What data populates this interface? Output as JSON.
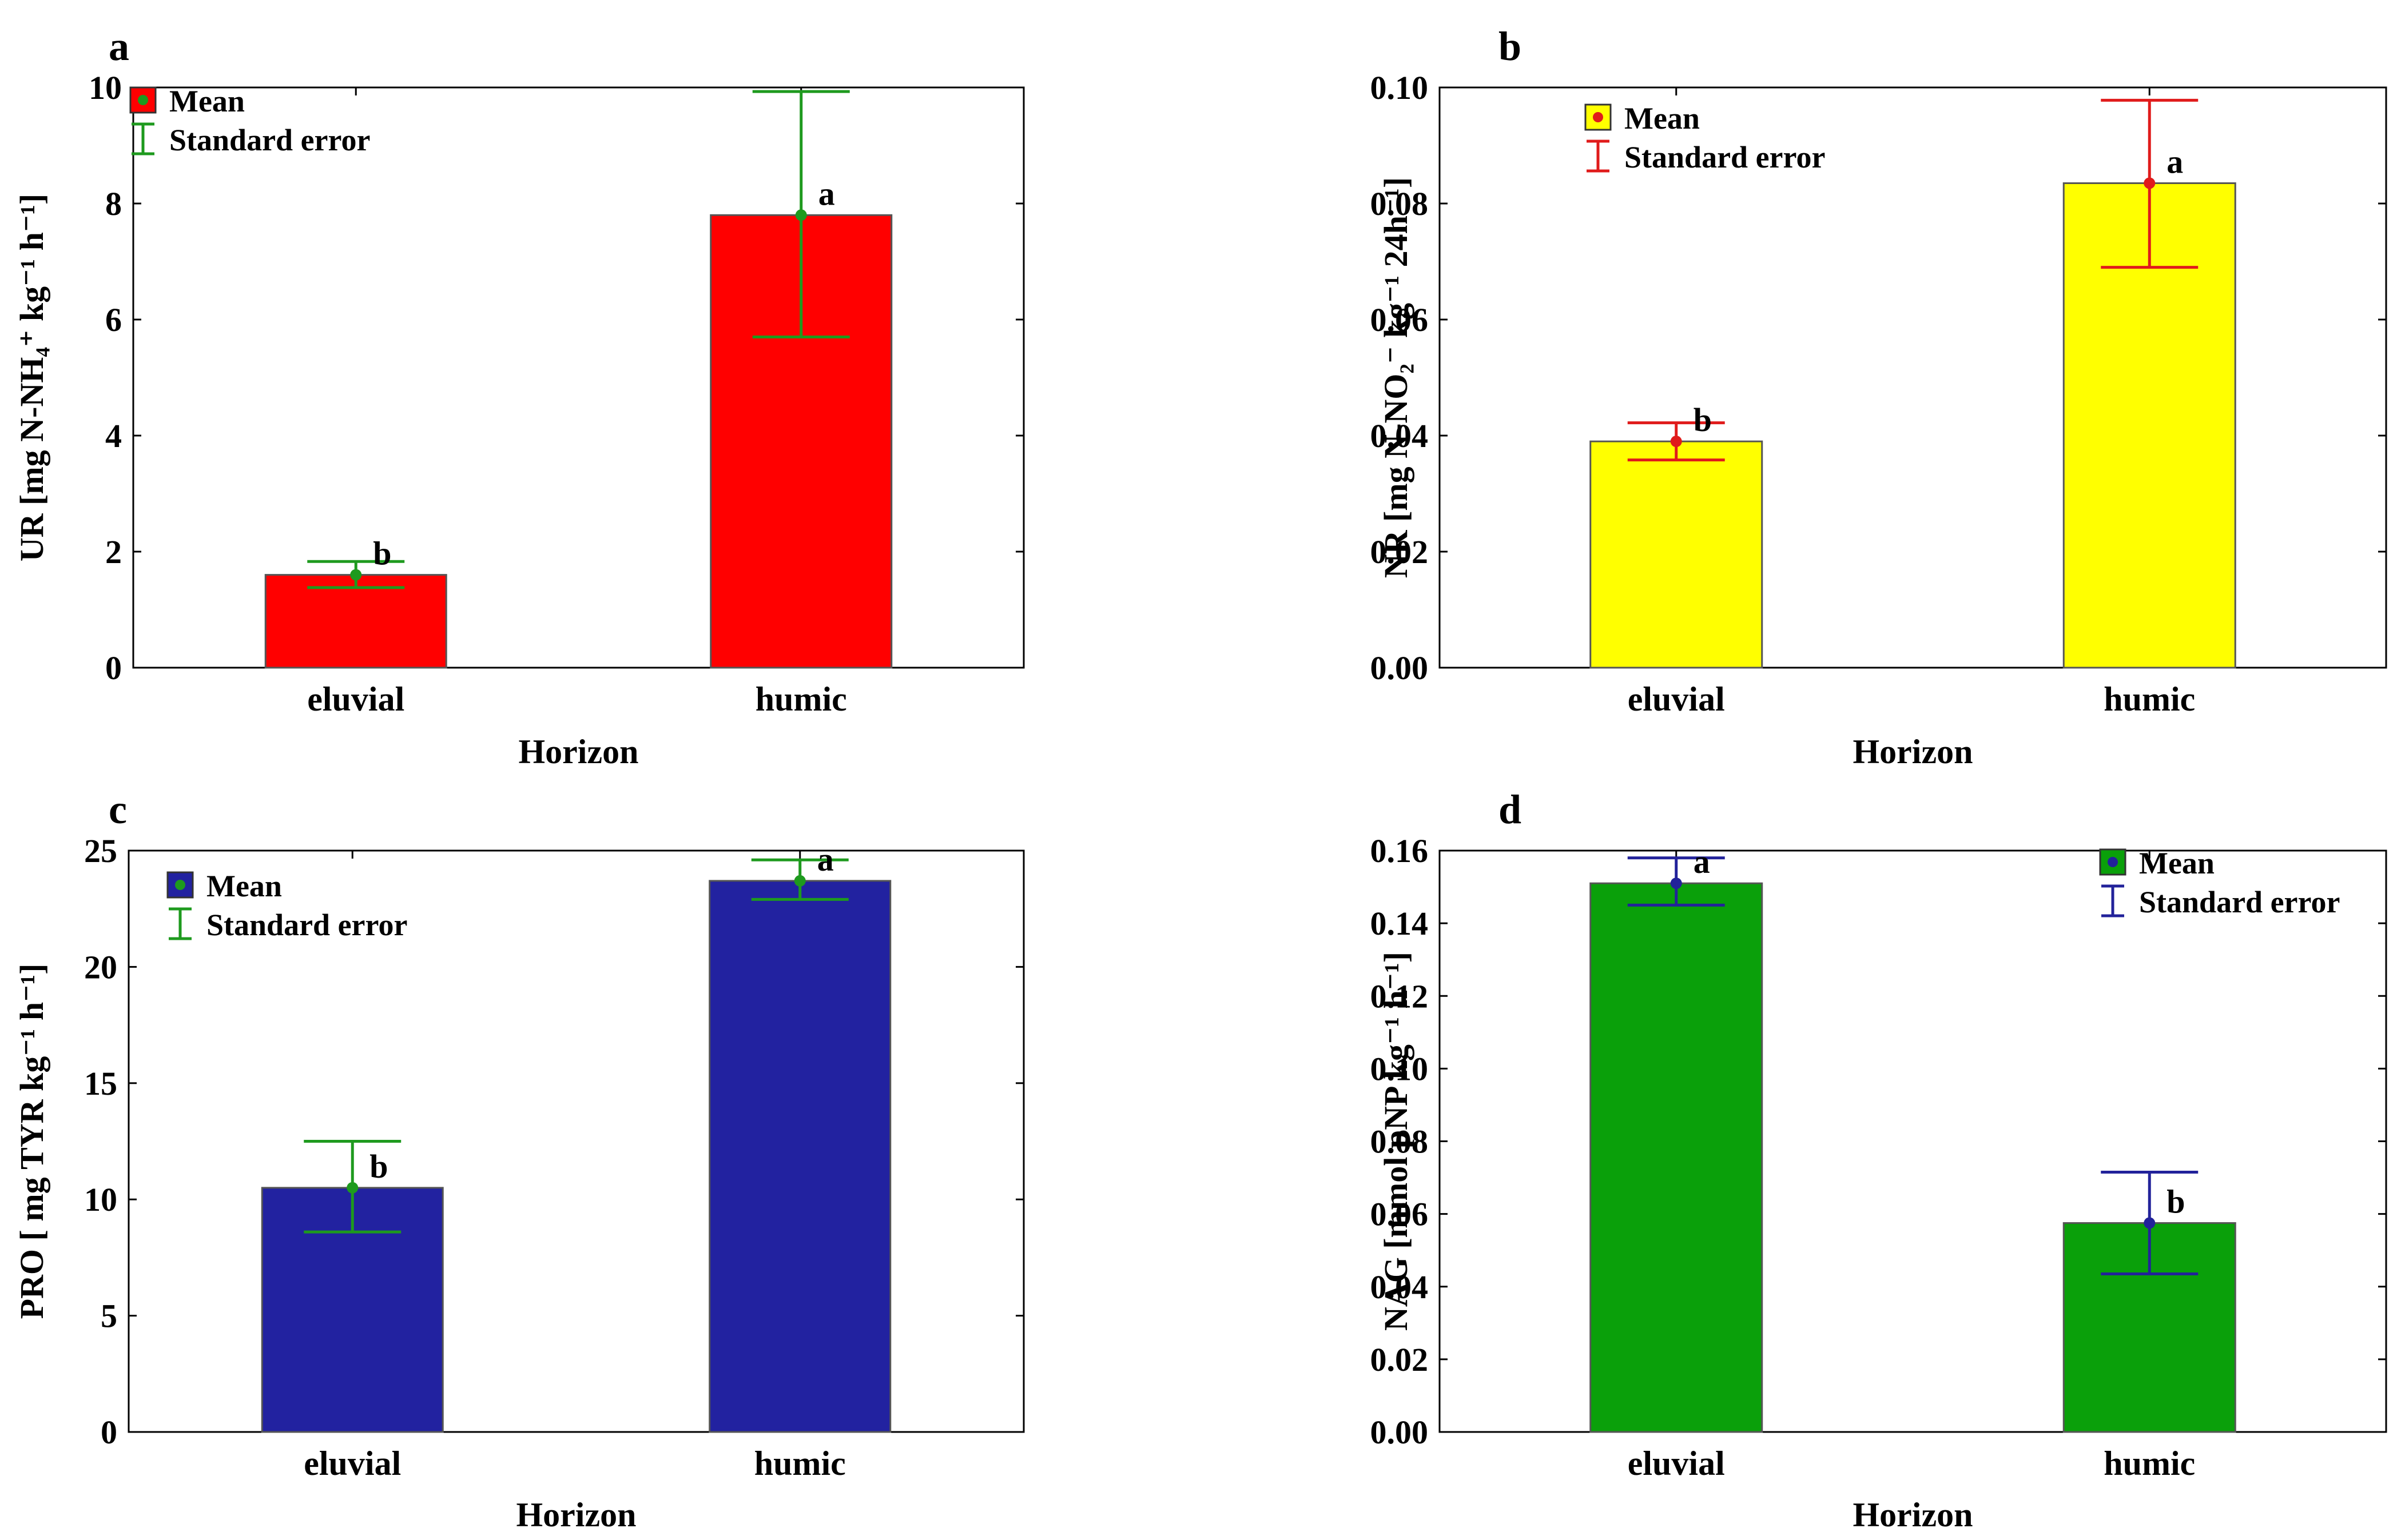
{
  "chart_data": [
    {
      "type": "bar",
      "panel_label": "a",
      "categories": [
        "eluvial",
        "humic"
      ],
      "values": [
        1.6,
        7.8
      ],
      "se_low": [
        1.38,
        5.7
      ],
      "se_high": [
        1.83,
        9.93
      ],
      "significance_letters": [
        "b",
        "a"
      ],
      "xlabel": "Horizon",
      "ylabel": "UR [mg N-NH₄⁺ kg⁻¹ h⁻¹]",
      "ylim": [
        0,
        10
      ],
      "yticks": [
        "0",
        "2",
        "4",
        "6",
        "8",
        "10"
      ],
      "legend": {
        "mean": "Mean",
        "se": "Standard error",
        "position": "top-left"
      },
      "colors": {
        "bar": "#ff0000",
        "error": "#1e9a1e",
        "point": "#1e9a1e"
      }
    },
    {
      "type": "bar",
      "panel_label": "b",
      "categories": [
        "eluvial",
        "humic"
      ],
      "values": [
        0.039,
        0.0835
      ],
      "se_low": [
        0.0358,
        0.069
      ],
      "se_high": [
        0.0422,
        0.0978
      ],
      "significance_letters": [
        "b",
        "a"
      ],
      "xlabel": "Horizon",
      "ylabel": "NR [mg N-NO₂⁻ kg⁻¹ 24h⁻¹]",
      "ylim": [
        0,
        0.1
      ],
      "yticks": [
        "0.00",
        "0.02",
        "0.04",
        "0.06",
        "0.08",
        "0.10"
      ],
      "legend": {
        "mean": "Mean",
        "se": "Standard error",
        "position": "top-left"
      },
      "colors": {
        "bar": "#ffff00",
        "error": "#e01b1b",
        "point": "#e01b1b"
      }
    },
    {
      "type": "bar",
      "panel_label": "c",
      "categories": [
        "eluvial",
        "humic"
      ],
      "values": [
        10.5,
        23.7
      ],
      "se_low": [
        8.6,
        22.9
      ],
      "se_high": [
        12.5,
        24.6
      ],
      "significance_letters": [
        "b",
        "a"
      ],
      "xlabel": "Horizon",
      "ylabel": "PRO [ mg TYR kg⁻¹ h⁻¹]",
      "ylim": [
        0,
        25
      ],
      "yticks": [
        "0",
        "5",
        "10",
        "15",
        "20",
        "25"
      ],
      "legend": {
        "mean": "Mean",
        "se": "Standard error",
        "position": "top-left"
      },
      "colors": {
        "bar": "#2222a0",
        "error": "#1e9a1e",
        "point": "#1e9a1e"
      }
    },
    {
      "type": "bar",
      "panel_label": "d",
      "categories": [
        "eluvial",
        "humic"
      ],
      "values": [
        0.151,
        0.0575
      ],
      "se_low": [
        0.145,
        0.0435
      ],
      "se_high": [
        0.158,
        0.0715
      ],
      "significance_letters": [
        "a",
        "b"
      ],
      "xlabel": "Horizon",
      "ylabel": "NAG [mmol pNP kg⁻¹ h⁻¹]",
      "ylim": [
        0,
        0.16
      ],
      "yticks": [
        "0.00",
        "0.02",
        "0.04",
        "0.06",
        "0.08",
        "0.10",
        "0.12",
        "0.14",
        "0.16"
      ],
      "legend": {
        "mean": "Mean",
        "se": "Standard error",
        "position": "top-right"
      },
      "colors": {
        "bar": "#0aa00a",
        "error": "#22229a",
        "point": "#22229a"
      }
    }
  ]
}
